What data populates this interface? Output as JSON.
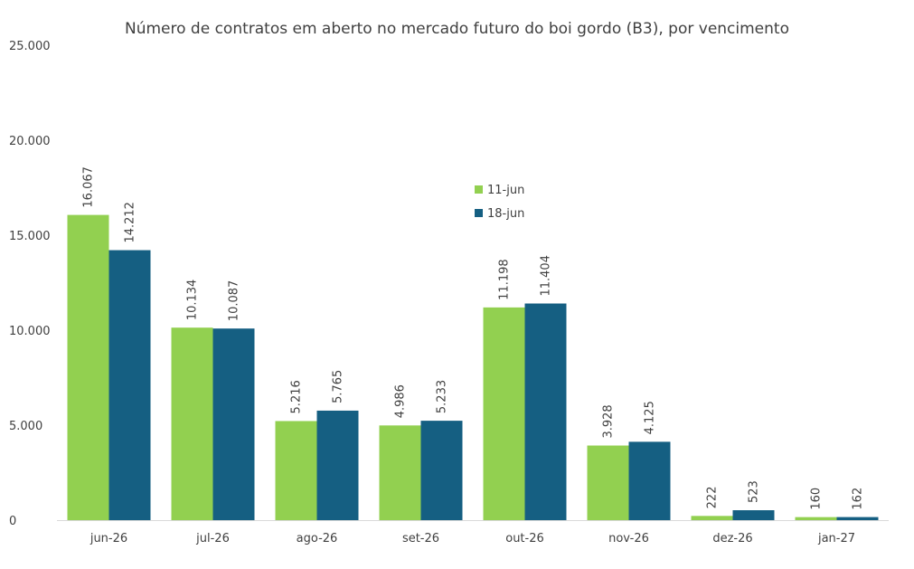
{
  "chart_data": {
    "type": "bar",
    "title": "Número de contratos em aberto no mercado futuro do boi gordo (B3), por vencimento",
    "xlabel": "",
    "ylabel": "",
    "categories": [
      "jun-26",
      "jul-26",
      "ago-26",
      "set-26",
      "out-26",
      "nov-26",
      "dez-26",
      "jan-27"
    ],
    "series": [
      {
        "name": "11-jun",
        "color": "#92D050",
        "values": [
          16067,
          10134,
          5216,
          4986,
          11198,
          3928,
          222,
          160
        ],
        "labels": [
          "16.067",
          "10.134",
          "5.216",
          "4.986",
          "11.198",
          "3.928",
          "222",
          "160"
        ]
      },
      {
        "name": "18-jun",
        "color": "#155F82",
        "values": [
          14212,
          10087,
          5765,
          5233,
          11404,
          4125,
          523,
          162
        ],
        "labels": [
          "14.212",
          "10.087",
          "5.765",
          "5.233",
          "11.404",
          "4.125",
          "523",
          "162"
        ]
      }
    ],
    "ylim": [
      0,
      25000
    ],
    "yticks": [
      0,
      5000,
      10000,
      15000,
      20000,
      25000
    ],
    "ytick_labels": [
      "0",
      "5.000",
      "10.000",
      "15.000",
      "20.000",
      "25.000"
    ],
    "grid": false,
    "legend_position": "upper-center"
  }
}
